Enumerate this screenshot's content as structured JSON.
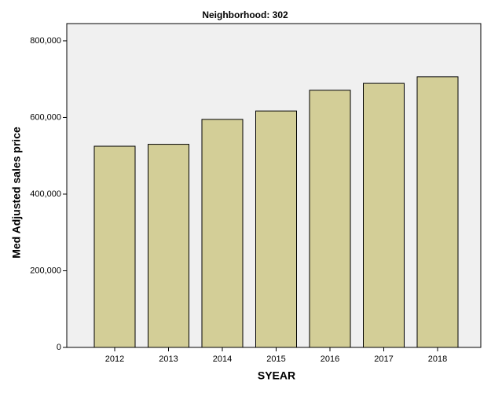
{
  "chart_data": {
    "type": "bar",
    "title": "Neighborhood: 302",
    "x_label": "SYEAR",
    "y_label": "Med Adjusted sales price",
    "categories": [
      "2012",
      "2013",
      "2014",
      "2015",
      "2016",
      "2017",
      "2018"
    ],
    "values": [
      525000,
      530000,
      595000,
      617000,
      671000,
      689000,
      706000
    ],
    "color": "#d3ce97",
    "ylim": [
      0,
      845000
    ],
    "yticks": [
      0,
      {
        "value": 200000,
        "label": "200,000"
      },
      {
        "value": 400000,
        "label": "400,000"
      },
      {
        "value": 600000,
        "label": "600,000"
      },
      {
        "value": 800000,
        "label": "800,000"
      }
    ],
    "grid": false
  }
}
